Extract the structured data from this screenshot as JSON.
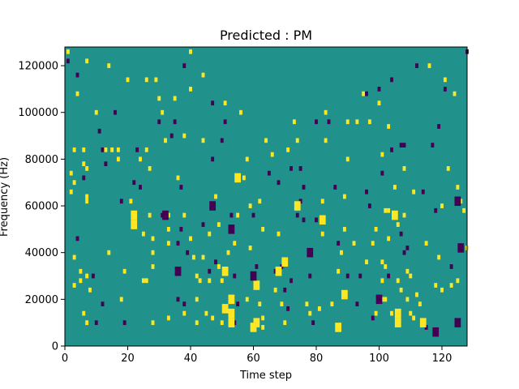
{
  "chart_data": {
    "type": "heatmap",
    "title": "Predicted : PM",
    "xlabel": "Time step",
    "ylabel": "Frequency (Hz)",
    "xlim": [
      0,
      128
    ],
    "ylim": [
      0,
      128000
    ],
    "xticks": [
      0,
      20,
      40,
      60,
      80,
      100,
      120
    ],
    "yticks": [
      0,
      20000,
      40000,
      60000,
      80000,
      100000,
      120000
    ],
    "xtick_labels": [
      "0",
      "20",
      "40",
      "60",
      "80",
      "100",
      "120"
    ],
    "ytick_labels": [
      "0",
      "20000",
      "40000",
      "60000",
      "80000",
      "100000",
      "120000"
    ],
    "grid": false,
    "background_value": 0,
    "colors": {
      "background": "#21918c",
      "high": "#fde725",
      "low": "#440154"
    },
    "cell_height": 2000,
    "cells": [
      [
        1,
        126000,
        1
      ],
      [
        1,
        122000,
        -1
      ],
      [
        2,
        74000,
        1
      ],
      [
        2,
        66000,
        1
      ],
      [
        3,
        84000,
        1
      ],
      [
        3,
        70000,
        1
      ],
      [
        3,
        38000,
        1
      ],
      [
        3,
        26000,
        1
      ],
      [
        4,
        46000,
        -1
      ],
      [
        4,
        108000,
        1
      ],
      [
        4,
        116000,
        -1
      ],
      [
        5,
        32000,
        1
      ],
      [
        5,
        28000,
        1
      ],
      [
        6,
        72000,
        -1
      ],
      [
        6,
        14000,
        1
      ],
      [
        6,
        84000,
        1
      ],
      [
        6,
        78000,
        1
      ],
      [
        7,
        76000,
        1
      ],
      [
        7,
        10000,
        1
      ],
      [
        7,
        30000,
        1
      ],
      [
        7,
        64000,
        1
      ],
      [
        7,
        122000,
        1
      ],
      [
        7,
        62000,
        1
      ],
      [
        8,
        24000,
        1
      ],
      [
        9,
        30000,
        -1
      ],
      [
        10,
        10000,
        -1
      ],
      [
        10,
        100000,
        1
      ],
      [
        11,
        92000,
        -1
      ],
      [
        12,
        18000,
        -1
      ],
      [
        12,
        84000,
        -1
      ],
      [
        13,
        78000,
        -1
      ],
      [
        13,
        84000,
        1
      ],
      [
        14,
        120000,
        1
      ],
      [
        14,
        40000,
        1
      ],
      [
        15,
        84000,
        1
      ],
      [
        16,
        100000,
        -1
      ],
      [
        17,
        84000,
        1
      ],
      [
        17,
        80000,
        1
      ],
      [
        18,
        20000,
        1
      ],
      [
        18,
        62000,
        -1
      ],
      [
        19,
        32000,
        1
      ],
      [
        19,
        10000,
        -1
      ],
      [
        20,
        114000,
        1
      ],
      [
        21,
        62000,
        1
      ],
      [
        22,
        70000,
        -1
      ],
      [
        23,
        84000,
        -1
      ],
      [
        24,
        80000,
        1
      ],
      [
        24,
        68000,
        -1
      ],
      [
        25,
        28000,
        1
      ],
      [
        25,
        48000,
        1
      ],
      [
        26,
        28000,
        1
      ],
      [
        26,
        114000,
        1
      ],
      [
        26,
        84000,
        1
      ],
      [
        27,
        76000,
        1
      ],
      [
        27,
        56000,
        1
      ],
      [
        28,
        10000,
        1
      ],
      [
        28,
        46000,
        1
      ],
      [
        28,
        40000,
        1
      ],
      [
        28,
        34000,
        1
      ],
      [
        29,
        114000,
        1
      ],
      [
        30,
        106000,
        1
      ],
      [
        30,
        96000,
        -1
      ],
      [
        31,
        56000,
        -1
      ],
      [
        31,
        100000,
        1
      ],
      [
        32,
        88000,
        1
      ],
      [
        33,
        56000,
        1
      ],
      [
        33,
        50000,
        1
      ],
      [
        33,
        44000,
        1
      ],
      [
        33,
        12000,
        1
      ],
      [
        34,
        90000,
        -1
      ],
      [
        35,
        106000,
        1
      ],
      [
        35,
        96000,
        -1
      ],
      [
        36,
        44000,
        -1
      ],
      [
        36,
        20000,
        -1
      ],
      [
        36,
        72000,
        1
      ],
      [
        37,
        68000,
        -1
      ],
      [
        37,
        50000,
        -1
      ],
      [
        38,
        120000,
        -1
      ],
      [
        38,
        90000,
        1
      ],
      [
        38,
        56000,
        1
      ],
      [
        38,
        18000,
        -1
      ],
      [
        38,
        14000,
        1
      ],
      [
        39,
        40000,
        -1
      ],
      [
        40,
        126000,
        1
      ],
      [
        40,
        110000,
        1
      ],
      [
        40,
        46000,
        1
      ],
      [
        41,
        38000,
        1
      ],
      [
        42,
        30000,
        1
      ],
      [
        42,
        20000,
        1
      ],
      [
        42,
        10000,
        1
      ],
      [
        43,
        28000,
        1
      ],
      [
        44,
        116000,
        1
      ],
      [
        44,
        88000,
        1
      ],
      [
        44,
        52000,
        -1
      ],
      [
        44,
        38000,
        1
      ],
      [
        45,
        14000,
        1
      ],
      [
        46,
        48000,
        1
      ],
      [
        46,
        32000,
        -1
      ],
      [
        46,
        28000,
        1
      ],
      [
        47,
        12000,
        1
      ],
      [
        47,
        104000,
        -1
      ],
      [
        47,
        80000,
        -1
      ],
      [
        48,
        36000,
        -1
      ],
      [
        48,
        64000,
        1
      ],
      [
        49,
        52000,
        1
      ],
      [
        49,
        34000,
        1
      ],
      [
        50,
        10000,
        1
      ],
      [
        50,
        28000,
        1
      ],
      [
        50,
        88000,
        -1
      ],
      [
        51,
        104000,
        1
      ],
      [
        51,
        96000,
        -1
      ],
      [
        52,
        40000,
        1
      ],
      [
        53,
        56000,
        -1
      ],
      [
        54,
        44000,
        1
      ],
      [
        54,
        10000,
        -1
      ],
      [
        54,
        30000,
        -1
      ],
      [
        55,
        18000,
        -1
      ],
      [
        55,
        56000,
        1
      ],
      [
        56,
        100000,
        1
      ],
      [
        57,
        72000,
        1
      ],
      [
        58,
        80000,
        1
      ],
      [
        58,
        20000,
        1
      ],
      [
        59,
        42000,
        1
      ],
      [
        59,
        60000,
        1
      ],
      [
        60,
        56000,
        -1
      ],
      [
        61,
        34000,
        -1
      ],
      [
        62,
        18000,
        1
      ],
      [
        62,
        62000,
        1
      ],
      [
        63,
        8000,
        1
      ],
      [
        63,
        50000,
        1
      ],
      [
        63,
        12000,
        1
      ],
      [
        64,
        88000,
        1
      ],
      [
        65,
        74000,
        -1
      ],
      [
        66,
        82000,
        1
      ],
      [
        67,
        32000,
        -1
      ],
      [
        67,
        24000,
        1
      ],
      [
        68,
        48000,
        1
      ],
      [
        68,
        70000,
        -1
      ],
      [
        69,
        34000,
        -1
      ],
      [
        69,
        18000,
        1
      ],
      [
        70,
        24000,
        -1
      ],
      [
        70,
        10000,
        1
      ],
      [
        71,
        16000,
        -1
      ],
      [
        71,
        84000,
        1
      ],
      [
        72,
        76000,
        -1
      ],
      [
        72,
        28000,
        -1
      ],
      [
        73,
        96000,
        1
      ],
      [
        74,
        88000,
        1
      ],
      [
        74,
        56000,
        -1
      ],
      [
        75,
        76000,
        -1
      ],
      [
        75,
        62000,
        -1
      ],
      [
        76,
        68000,
        -1
      ],
      [
        76,
        54000,
        -1
      ],
      [
        77,
        18000,
        1
      ],
      [
        78,
        14000,
        1
      ],
      [
        78,
        30000,
        -1
      ],
      [
        79,
        10000,
        -1
      ],
      [
        80,
        54000,
        -1
      ],
      [
        80,
        96000,
        -1
      ],
      [
        81,
        16000,
        1
      ],
      [
        82,
        62000,
        1
      ],
      [
        82,
        48000,
        1
      ],
      [
        83,
        100000,
        1
      ],
      [
        83,
        88000,
        1
      ],
      [
        84,
        96000,
        -1
      ],
      [
        85,
        18000,
        1
      ],
      [
        86,
        68000,
        -1
      ],
      [
        87,
        32000,
        1
      ],
      [
        87,
        44000,
        -1
      ],
      [
        88,
        40000,
        1
      ],
      [
        89,
        64000,
        1
      ],
      [
        89,
        50000,
        1
      ],
      [
        90,
        96000,
        1
      ],
      [
        90,
        80000,
        1
      ],
      [
        90,
        30000,
        -1
      ],
      [
        92,
        44000,
        1
      ],
      [
        93,
        96000,
        1
      ],
      [
        93,
        18000,
        -1
      ],
      [
        94,
        30000,
        -1
      ],
      [
        95,
        108000,
        1
      ],
      [
        96,
        36000,
        1
      ],
      [
        96,
        108000,
        -1
      ],
      [
        96,
        66000,
        -1
      ],
      [
        97,
        96000,
        1
      ],
      [
        97,
        60000,
        -1
      ],
      [
        98,
        44000,
        1
      ],
      [
        98,
        12000,
        -1
      ],
      [
        99,
        14000,
        1
      ],
      [
        99,
        50000,
        1
      ],
      [
        100,
        104000,
        1
      ],
      [
        100,
        110000,
        -1
      ],
      [
        101,
        82000,
        1
      ],
      [
        101,
        74000,
        -1
      ],
      [
        101,
        28000,
        1
      ],
      [
        101,
        20000,
        1
      ],
      [
        101,
        36000,
        1
      ],
      [
        102,
        58000,
        1
      ],
      [
        102,
        34000,
        1
      ],
      [
        102,
        20000,
        1
      ],
      [
        103,
        94000,
        1
      ],
      [
        103,
        58000,
        1
      ],
      [
        103,
        46000,
        1
      ],
      [
        103,
        30000,
        -1
      ],
      [
        104,
        14000,
        1
      ],
      [
        104,
        114000,
        -1
      ],
      [
        104,
        84000,
        -1
      ],
      [
        105,
        68000,
        1
      ],
      [
        106,
        28000,
        1
      ],
      [
        106,
        52000,
        1
      ],
      [
        107,
        86000,
        -1
      ],
      [
        107,
        48000,
        -1
      ],
      [
        107,
        24000,
        1
      ],
      [
        108,
        86000,
        -1
      ],
      [
        108,
        76000,
        1
      ],
      [
        108,
        56000,
        1
      ],
      [
        108,
        40000,
        -1
      ],
      [
        109,
        42000,
        -1
      ],
      [
        109,
        32000,
        1
      ],
      [
        109,
        20000,
        1
      ],
      [
        110,
        30000,
        1
      ],
      [
        110,
        14000,
        1
      ],
      [
        111,
        66000,
        1
      ],
      [
        111,
        12000,
        1
      ],
      [
        112,
        120000,
        -1
      ],
      [
        112,
        22000,
        1
      ],
      [
        113,
        18000,
        1
      ],
      [
        114,
        66000,
        -1
      ],
      [
        115,
        44000,
        1
      ],
      [
        115,
        8000,
        -1
      ],
      [
        116,
        120000,
        1
      ],
      [
        117,
        86000,
        -1
      ],
      [
        118,
        26000,
        1
      ],
      [
        118,
        58000,
        -1
      ],
      [
        119,
        94000,
        -1
      ],
      [
        119,
        38000,
        1
      ],
      [
        120,
        24000,
        1
      ],
      [
        120,
        60000,
        1
      ],
      [
        121,
        114000,
        1
      ],
      [
        121,
        110000,
        -1
      ],
      [
        122,
        76000,
        1
      ],
      [
        123,
        34000,
        -1
      ],
      [
        123,
        26000,
        1
      ],
      [
        124,
        108000,
        1
      ],
      [
        125,
        68000,
        1
      ],
      [
        125,
        28000,
        1
      ],
      [
        126,
        62000,
        1
      ],
      [
        127,
        58000,
        1
      ],
      [
        128,
        42000,
        1
      ],
      [
        128,
        126000,
        -1
      ]
    ],
    "blocks": [
      [
        22,
        56000,
        1
      ],
      [
        22,
        52000,
        1
      ],
      [
        32,
        56000,
        -1
      ],
      [
        36,
        32000,
        -1
      ],
      [
        47,
        60000,
        -1
      ],
      [
        51,
        32000,
        1
      ],
      [
        51,
        16000,
        1
      ],
      [
        53,
        50000,
        -1
      ],
      [
        53,
        20000,
        1
      ],
      [
        53,
        14000,
        1
      ],
      [
        53,
        10000,
        1
      ],
      [
        55,
        72000,
        1
      ],
      [
        60,
        8000,
        1
      ],
      [
        61,
        10000,
        1
      ],
      [
        61,
        26000,
        1
      ],
      [
        60,
        30000,
        -1
      ],
      [
        68,
        32000,
        1
      ],
      [
        70,
        36000,
        1
      ],
      [
        74,
        60000,
        1
      ],
      [
        78,
        40000,
        -1
      ],
      [
        82,
        54000,
        1
      ],
      [
        87,
        8000,
        1
      ],
      [
        89,
        22000,
        1
      ],
      [
        100,
        20000,
        -1
      ],
      [
        105,
        56000,
        1
      ],
      [
        106,
        10000,
        1
      ],
      [
        106,
        14000,
        1
      ],
      [
        114,
        10000,
        1
      ],
      [
        118,
        6000,
        -1
      ],
      [
        125,
        10000,
        -1
      ],
      [
        125,
        62000,
        -1
      ],
      [
        126,
        42000,
        -1
      ]
    ]
  }
}
